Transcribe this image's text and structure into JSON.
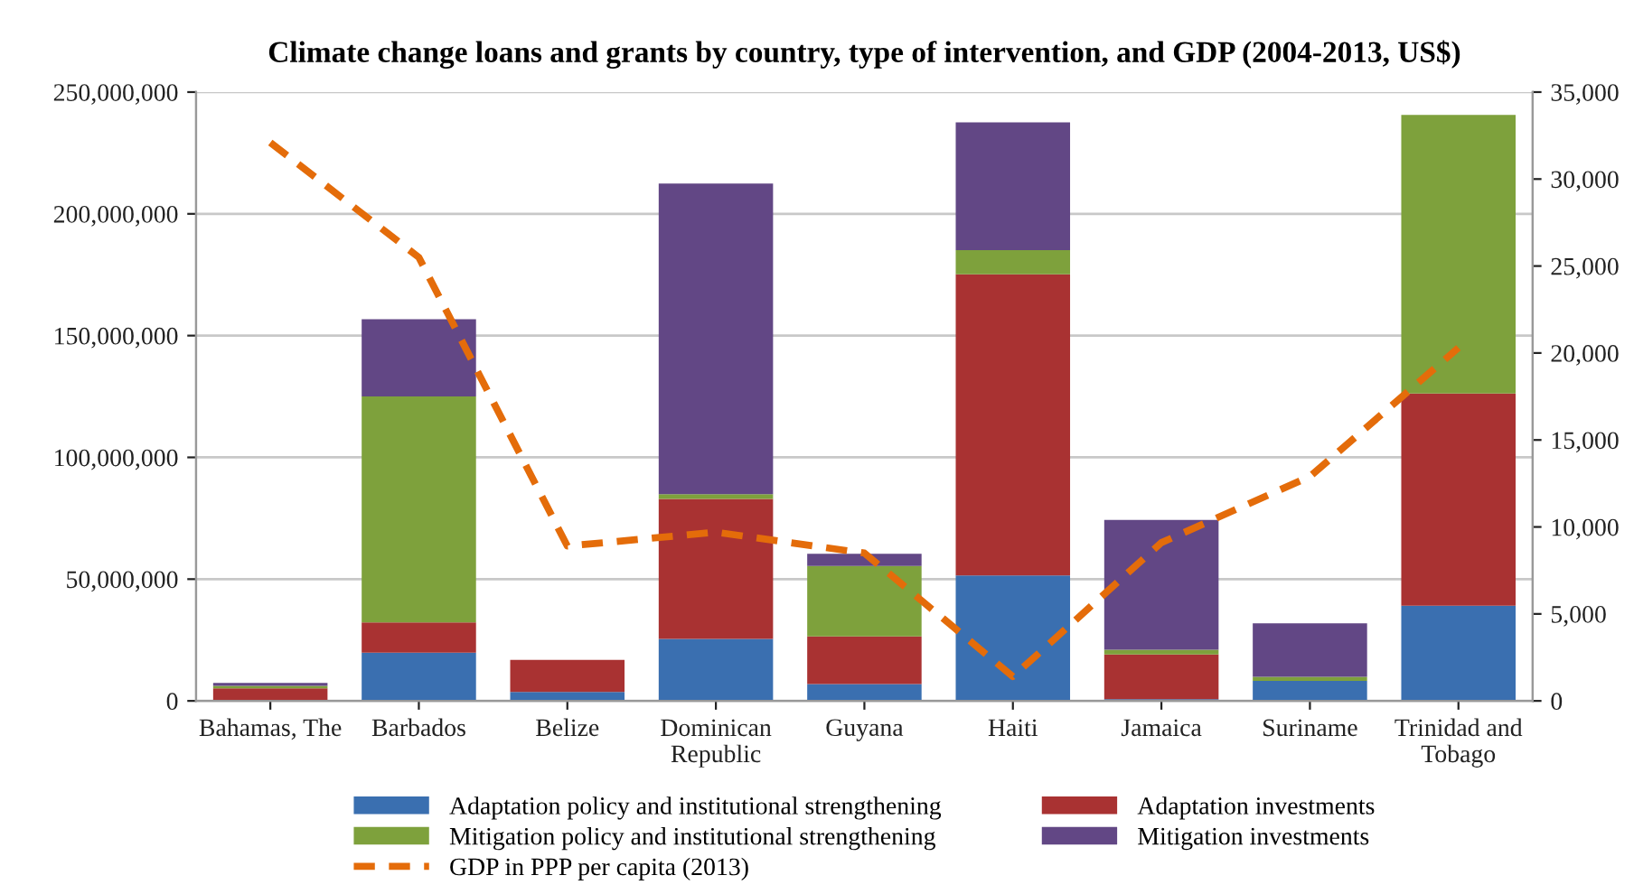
{
  "chart_data": {
    "type": "bar",
    "stacked": true,
    "title": "Climate change loans and grants by country, type of intervention, and GDP (2004-2013, US$)",
    "categories": [
      "Bahamas, The",
      "Barbados",
      "Belize",
      "Dominican\nRepublic",
      "Guyana",
      "Haiti",
      "Jamaica",
      "Suriname",
      "Trinidad and\nTobago"
    ],
    "series": [
      {
        "name": "Adaptation policy and institutional strengthening",
        "color": "#3a6fb0",
        "values": [
          null,
          19800000,
          3700000,
          25500000,
          6900000,
          51500000,
          700000,
          8200000,
          39100000
        ]
      },
      {
        "name": "Adaptation investments",
        "color": "#a93232",
        "values": [
          5200000,
          12400000,
          13100000,
          57400000,
          19600000,
          123700000,
          18400000,
          0,
          87100000
        ]
      },
      {
        "name": "Mitigation policy and institutional strengthening",
        "color": "#7ea13c",
        "values": [
          1000000,
          92800000,
          0,
          2000000,
          28900000,
          9900000,
          1900000,
          1700000,
          114400000
        ]
      },
      {
        "name": "Mitigation investments",
        "color": "#624785",
        "values": [
          1200000,
          31700000,
          0,
          127500000,
          5000000,
          52500000,
          53300000,
          22000000,
          null
        ]
      },
      {
        "name": "GDP in PPP per capita (2013)",
        "type": "line",
        "axis": "y2",
        "color": "#e46c0a",
        "line_style": "dashed",
        "values": [
          32100,
          25500,
          8900,
          9700,
          8500,
          1400,
          9100,
          12900,
          20300
        ]
      }
    ],
    "ylim": [
      0,
      250000000
    ],
    "yticks": [
      {
        "value": 0,
        "label": "0"
      },
      {
        "value": 50000000,
        "label": "50,000,000"
      },
      {
        "value": 100000000,
        "label": "100,000,000"
      },
      {
        "value": 150000000,
        "label": "150,000,000"
      },
      {
        "value": 200000000,
        "label": "200,000,000"
      },
      {
        "value": 250000000,
        "label": "250,000,000"
      }
    ],
    "y2lim": [
      0,
      35000
    ],
    "y2ticks": [
      0,
      {
        "value": 5000,
        "label": "5,000"
      },
      {
        "value": 10000,
        "label": "10,000"
      },
      {
        "value": 15000,
        "label": "15,000"
      },
      {
        "value": 20000,
        "label": "20,000"
      },
      {
        "value": 25000,
        "label": "25,000"
      },
      {
        "value": 30000,
        "label": "30,000"
      },
      {
        "value": 35000,
        "label": "35,000"
      }
    ],
    "grid": "y",
    "legend": "bottom",
    "marker": "none"
  }
}
